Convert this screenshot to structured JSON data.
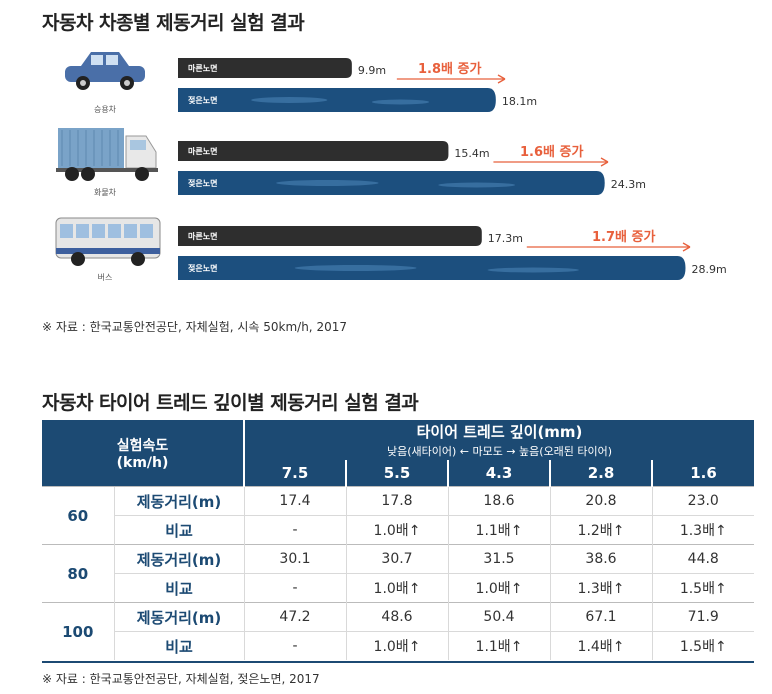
{
  "title1": "자동차 차종별 제동거리 실험 결과",
  "note1": "※ 자료 : 한국교통안전공단, 자체실험, 시속 50km/h, 2017",
  "title2": "자동차 타이어 트레드 깊이별 제동거리 실험 결과",
  "note2": "※ 자료 : 한국교통안전공단, 자체실험, 젖은노면, 2017",
  "colors": {
    "dry": "#2e2e2e",
    "wet": "#1c4f7e",
    "accent": "#e8603c",
    "table_header": "#1c4a73",
    "label": "#1c4a73"
  },
  "chart_data": {
    "type": "bar",
    "orientation": "horizontal",
    "unit": "m",
    "categories": [
      "승용차",
      "화물차",
      "버스"
    ],
    "icons": [
      "car-icon",
      "truck-icon",
      "bus-icon"
    ],
    "series": [
      {
        "name": "마른노면",
        "values": [
          9.9,
          15.4,
          17.3
        ]
      },
      {
        "name": "젖은노면",
        "values": [
          18.1,
          24.3,
          28.9
        ]
      }
    ],
    "value_labels": {
      "dry": [
        "9.9m",
        "15.4m",
        "17.3m"
      ],
      "wet": [
        "18.1m",
        "24.3m",
        "28.9m"
      ]
    },
    "annotations": [
      "1.8배 증가",
      "1.6배 증가",
      "1.7배 증가"
    ]
  },
  "table": {
    "speed_header": [
      "실험속도",
      "(km/h)"
    ],
    "depth_header": "타이어 트레드 깊이(mm)",
    "depth_subheader": "낮음(새타이어) ← 마모도 → 높음(오래된 타이어)",
    "depths": [
      "7.5",
      "5.5",
      "4.3",
      "2.8",
      "1.6"
    ],
    "groups": [
      {
        "speed": "60",
        "rows": [
          {
            "label": "제동거리(m)",
            "values": [
              "17.4",
              "17.8",
              "18.6",
              "20.8",
              "23.0"
            ]
          },
          {
            "label": "비교",
            "values": [
              "-",
              "1.0배↑",
              "1.1배↑",
              "1.2배↑",
              "1.3배↑"
            ]
          }
        ]
      },
      {
        "speed": "80",
        "rows": [
          {
            "label": "제동거리(m)",
            "values": [
              "30.1",
              "30.7",
              "31.5",
              "38.6",
              "44.8"
            ]
          },
          {
            "label": "비교",
            "values": [
              "-",
              "1.0배↑",
              "1.0배↑",
              "1.3배↑",
              "1.5배↑"
            ]
          }
        ]
      },
      {
        "speed": "100",
        "rows": [
          {
            "label": "제동거리(m)",
            "values": [
              "47.2",
              "48.6",
              "50.4",
              "67.1",
              "71.9"
            ]
          },
          {
            "label": "비교",
            "values": [
              "-",
              "1.0배↑",
              "1.1배↑",
              "1.4배↑",
              "1.5배↑"
            ]
          }
        ]
      }
    ]
  }
}
